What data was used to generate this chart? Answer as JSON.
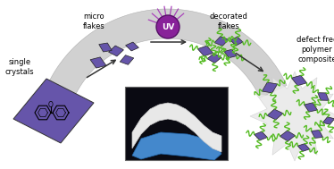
{
  "purple": "#6655aa",
  "green": "#55bb22",
  "arch_color": "#cccccc",
  "uv_color": "#882299",
  "uv_edge": "#551166",
  "arrow_color": "#333333",
  "label_fs": 6.0,
  "uv_fs": 6.5,
  "labels": {
    "single_crystals": "single\ncrystals",
    "micro_flakes": "micro\nflakes",
    "uv": "UV",
    "decorated_flakes": "decorated\nflakes",
    "defect_free": "defect free\npolymer\ncomposite"
  }
}
